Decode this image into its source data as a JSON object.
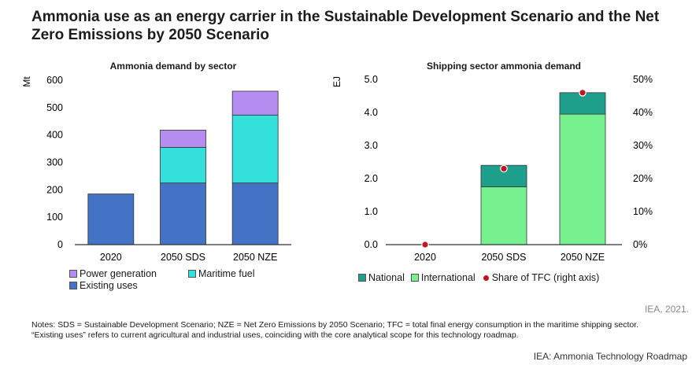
{
  "title": "Ammonia use as an energy carrier in the Sustainable Development Scenario and the Net Zero Emissions by 2050 Scenario",
  "colors": {
    "existing_uses": "#4472c4",
    "maritime_fuel": "#33e0dc",
    "power_generation": "#b58cf0",
    "national": "#1e9f8c",
    "international": "#77f08f",
    "share_marker": "#c0151f",
    "axis": "#333333"
  },
  "chart_data": [
    {
      "type": "bar",
      "title": "Ammonia demand by sector",
      "ylabel": "Mt",
      "ylim": [
        0,
        600
      ],
      "yticks": [
        "0",
        "100",
        "200",
        "300",
        "400",
        "500",
        "600"
      ],
      "stacked": true,
      "categories": [
        "2020",
        "2050 SDS",
        "2050 NZE"
      ],
      "series": [
        {
          "name": "Existing uses",
          "values": [
            185,
            225,
            225
          ]
        },
        {
          "name": "Maritime fuel",
          "values": [
            0,
            130,
            248
          ]
        },
        {
          "name": "Power generation",
          "values": [
            0,
            63,
            87
          ]
        }
      ],
      "legend": {
        "position": "bottom",
        "items": [
          "Power generation",
          "Maritime fuel",
          "Existing uses"
        ]
      }
    },
    {
      "type": "bar",
      "title": "Shipping sector ammonia demand",
      "ylabel": "EJ",
      "ylim": [
        0,
        5
      ],
      "yticks": [
        "0.0",
        "1.0",
        "2.0",
        "3.0",
        "4.0",
        "5.0"
      ],
      "y2lim": [
        0,
        0.5
      ],
      "y2ticks": [
        "0%",
        "10%",
        "20%",
        "30%",
        "40%",
        "50%"
      ],
      "stacked": true,
      "categories": [
        "2020",
        "2050 SDS",
        "2050 NZE"
      ],
      "series": [
        {
          "name": "International",
          "values": [
            0,
            1.75,
            3.95
          ]
        },
        {
          "name": "National",
          "values": [
            0,
            0.65,
            0.65
          ]
        }
      ],
      "markers": {
        "name": "Share of TFC (right axis)",
        "values": [
          0,
          0.23,
          0.46
        ]
      },
      "legend": {
        "position": "bottom",
        "items": [
          "National",
          "International",
          "Share of TFC (right axis)"
        ]
      }
    }
  ],
  "source": "IEA, 2021.",
  "notes": "Notes: SDS = Sustainable Development Scenario; NZE = Net Zero Emissions by 2050 Scenario; TFC = total final energy consumption in the maritime shipping sector. “Existing uses” refers to current agricultural and industrial uses, coinciding with the core analytical scope for this technology roadmap.",
  "footer": "IEA: Ammonia Technology Roadmap"
}
